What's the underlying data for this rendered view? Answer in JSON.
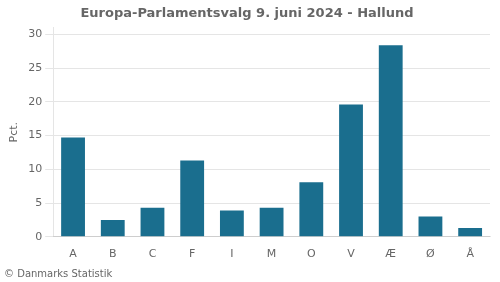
{
  "chart_data": {
    "type": "bar",
    "title": "Europa-Parlamentsvalg 9. juni 2024 - Hallund",
    "ylabel": "Pct.",
    "annotations": [
      "© Danmarks Statistik"
    ],
    "categories": [
      "A",
      "B",
      "C",
      "F",
      "I",
      "M",
      "O",
      "V",
      "Æ",
      "Ø",
      "Å"
    ],
    "values": [
      14.7,
      2.5,
      4.3,
      11.3,
      3.9,
      4.3,
      8.1,
      19.6,
      28.4,
      3.0,
      1.3
    ],
    "color": "#1a6e8e",
    "ylim": [
      0,
      31
    ],
    "yticks": [
      0,
      5,
      10,
      15,
      20,
      25,
      30
    ],
    "grid": true
  }
}
